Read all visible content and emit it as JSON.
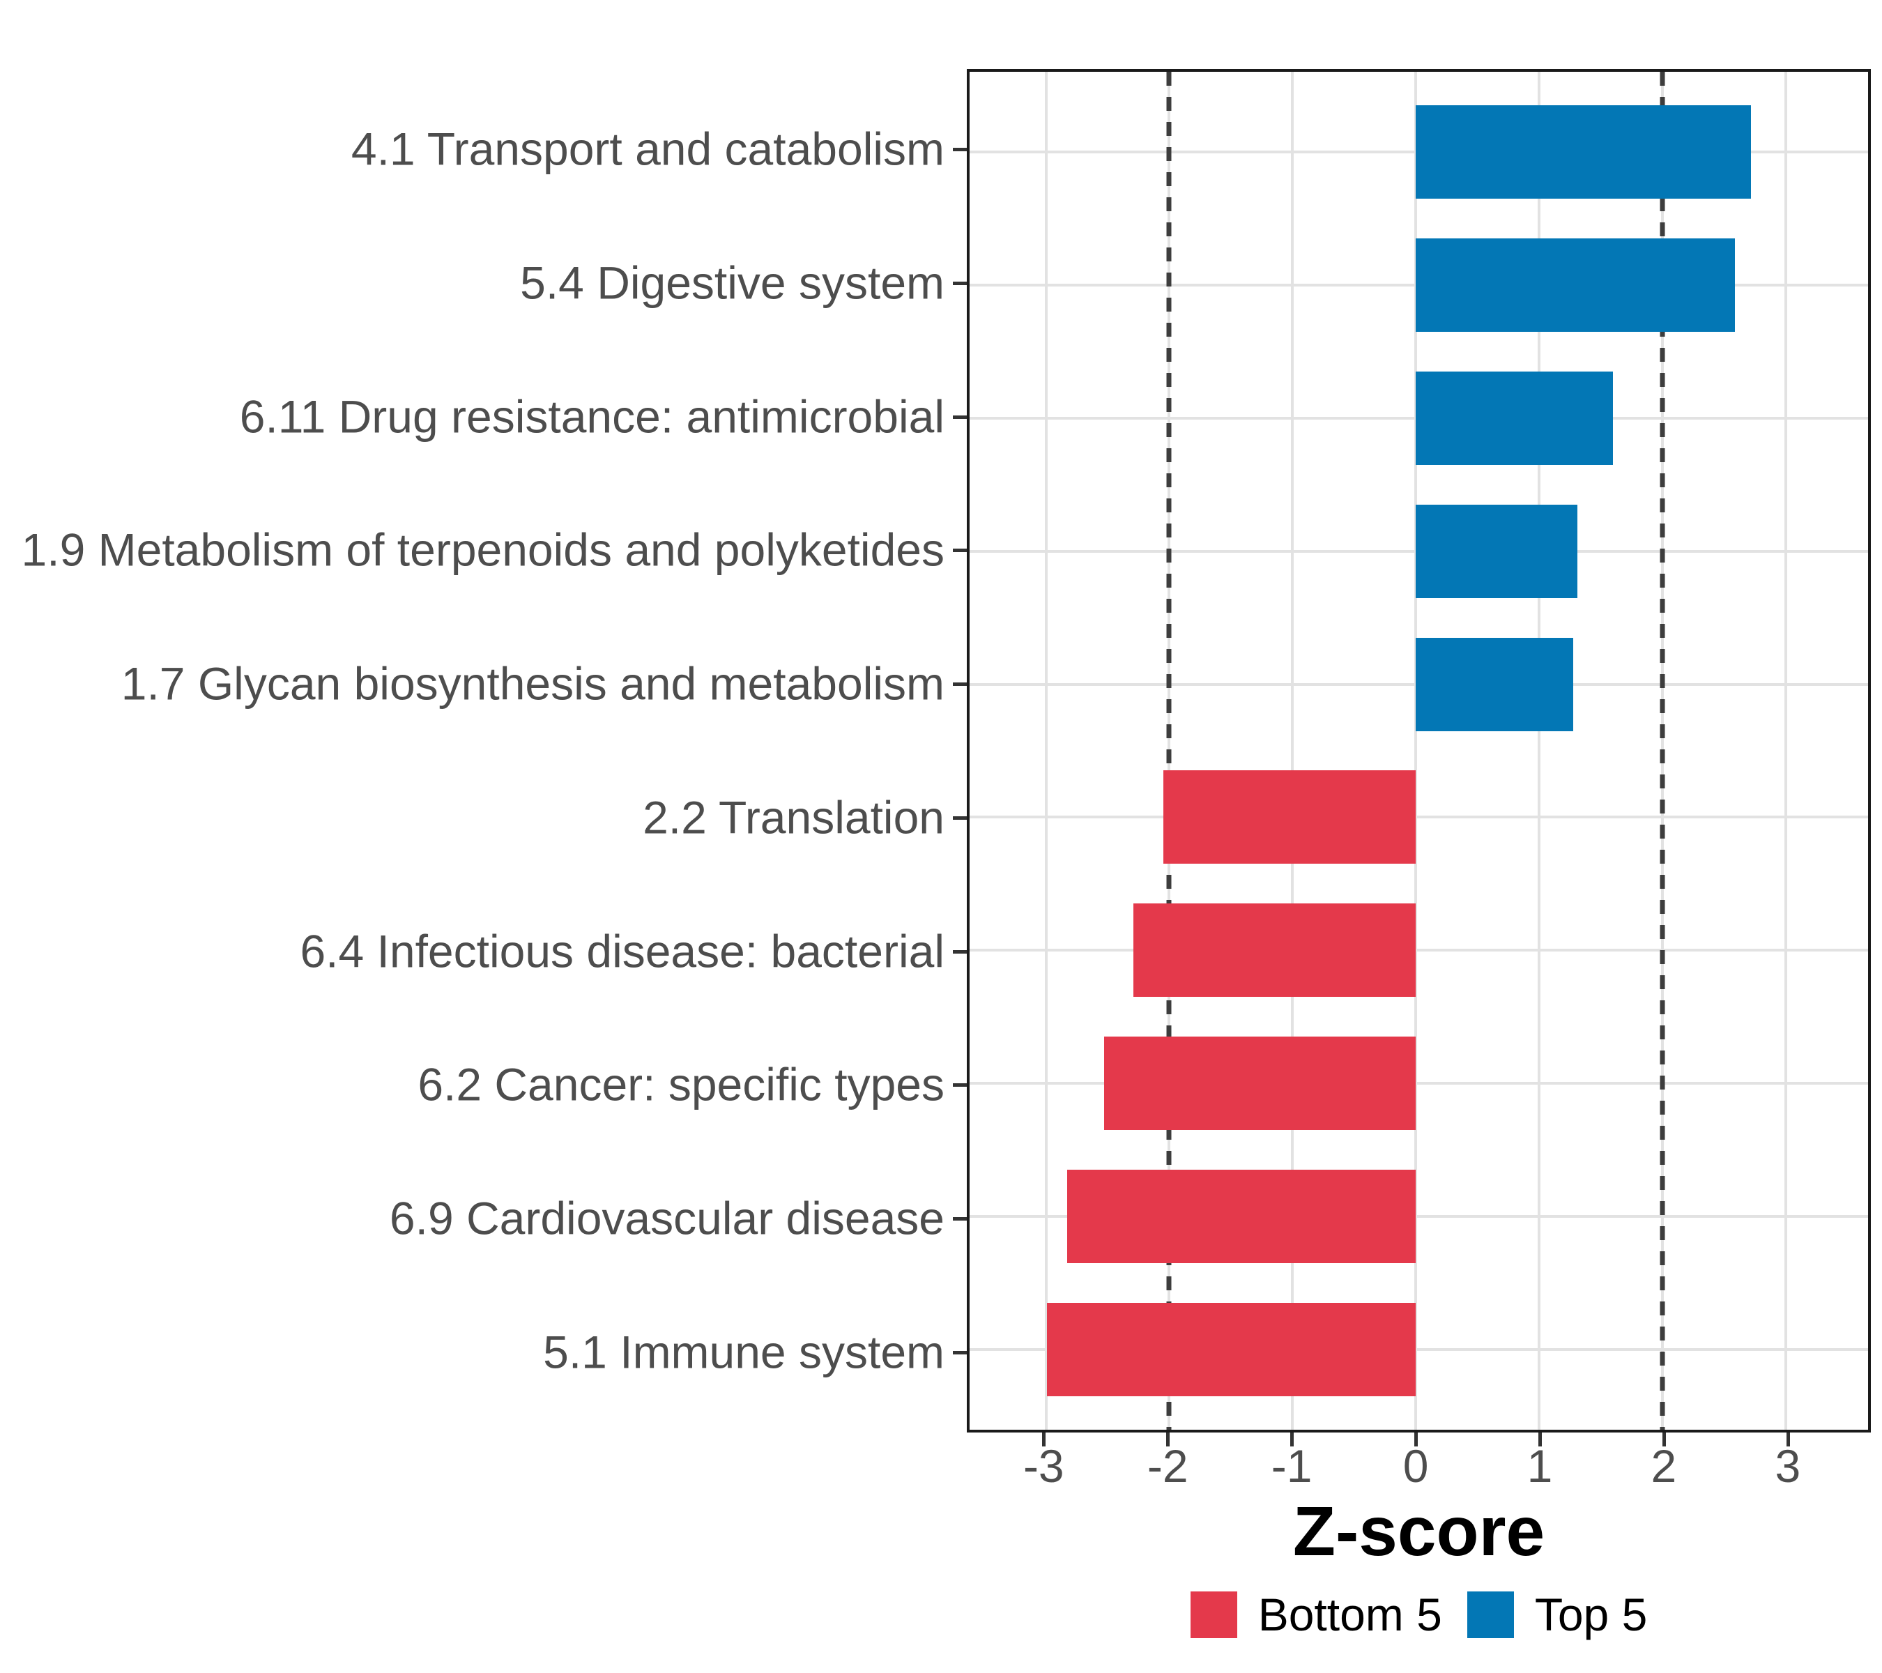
{
  "chart_data": {
    "type": "bar",
    "orientation": "horizontal",
    "title": "",
    "xlabel": "Z-score",
    "ylabel": "",
    "xlim": [
      -3.62,
      3.67
    ],
    "x_ticks": [
      -3,
      -2,
      -1,
      0,
      1,
      2,
      3
    ],
    "x_tick_labels": [
      "-3",
      "-2",
      "-1",
      "0",
      "1",
      "2",
      "3"
    ],
    "reference_lines": [
      -2,
      2
    ],
    "grid": true,
    "legend_position": "bottom",
    "bar_relative_width": 0.7,
    "bars": [
      {
        "category": "4.1 Transport and catabolism",
        "value": 2.72,
        "group": "Top 5"
      },
      {
        "category": "5.4 Digestive system",
        "value": 2.59,
        "group": "Top 5"
      },
      {
        "category": "6.11 Drug resistance: antimicrobial",
        "value": 1.6,
        "group": "Top 5"
      },
      {
        "category": "1.9 Metabolism of terpenoids and polyketides",
        "value": 1.31,
        "group": "Top 5"
      },
      {
        "category": "1.7 Glycan biosynthesis and metabolism",
        "value": 1.28,
        "group": "Top 5"
      },
      {
        "category": "2.2 Translation",
        "value": -2.05,
        "group": "Bottom 5"
      },
      {
        "category": "6.4 Infectious disease: bacterial",
        "value": -2.29,
        "group": "Bottom 5"
      },
      {
        "category": "6.2 Cancer: specific types",
        "value": -2.53,
        "group": "Bottom 5"
      },
      {
        "category": "6.9 Cardiovascular disease",
        "value": -2.83,
        "group": "Bottom 5"
      },
      {
        "category": "5.1 Immune system",
        "value": -2.99,
        "group": "Bottom 5"
      }
    ],
    "legend": [
      {
        "label": "Bottom 5",
        "color": "#E4394B"
      },
      {
        "label": "Top 5",
        "color": "#0377B5"
      }
    ]
  },
  "style": {
    "background": "#FFFFFF",
    "grid_color": "#E2E2E2",
    "refline_color": "#3D3D3D",
    "panel_border_color": "#1A1A1A",
    "tick_color": "#333333",
    "axis_text_color": "#4D4D4D",
    "axis_title_color": "#000000"
  }
}
